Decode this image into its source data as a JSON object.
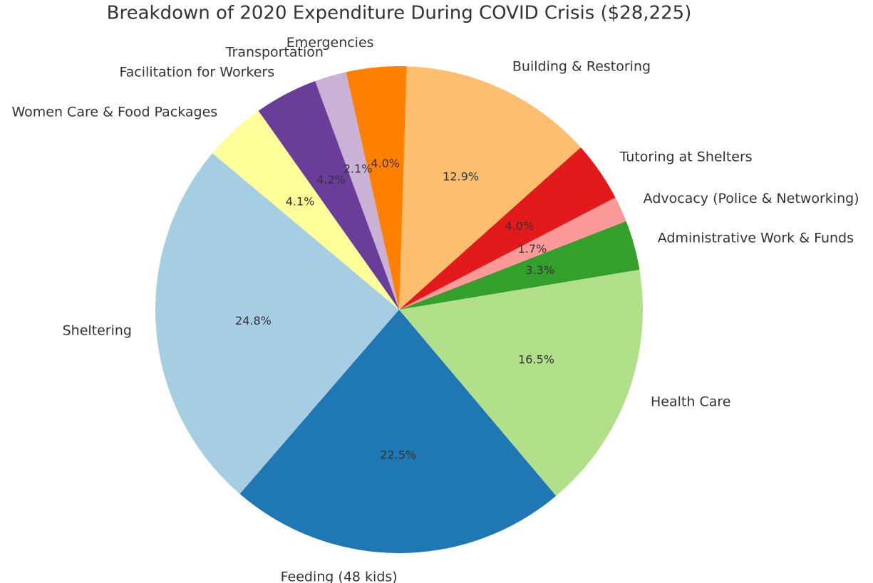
{
  "chart_data": {
    "type": "pie",
    "title": "Breakdown of 2020 Expenditure During COVID Crisis ($28,225)",
    "categories": [
      "Sheltering",
      "Feeding (48 kids)",
      "Health Care",
      "Administrative Work & Funds",
      "Advocacy (Police & Networking)",
      "Tutoring at Shelters",
      "Building & Restoring",
      "Emergencies",
      "Transportation",
      "Facilitation for Workers",
      "Women Care & Food Packages"
    ],
    "values": [
      24.8,
      22.5,
      16.5,
      3.3,
      1.7,
      4.0,
      12.9,
      4.0,
      2.1,
      4.2,
      4.1
    ],
    "value_labels": [
      "24.8%",
      "22.5%",
      "16.5%",
      "3.3%",
      "1.7%",
      "4.0%",
      "12.9%",
      "4.0%",
      "2.1%",
      "4.2%",
      "4.1%"
    ],
    "colors": [
      "#a6cee3",
      "#1f78b4",
      "#b2df8a",
      "#33a02c",
      "#fb9a99",
      "#e31a1c",
      "#fdbf6f",
      "#ff7f00",
      "#cab2d6",
      "#6a3d9a",
      "#ffff99"
    ],
    "start_angle": 140
  }
}
